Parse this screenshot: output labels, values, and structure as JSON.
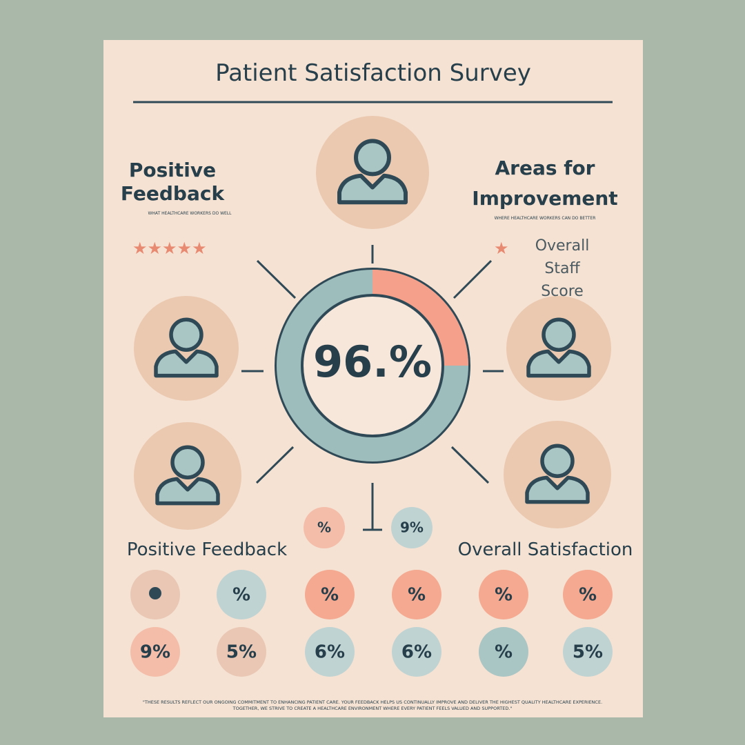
{
  "header": {
    "title": "Patient Satisfaction Survey"
  },
  "positive_feedback": {
    "heading": "Positive Feedback",
    "subheading": "WHAT HEALTHCARE WORKERS DO WELL"
  },
  "improvement": {
    "heading": "Areas for Improvement",
    "subheading": "WHERE HEALTHCARE WORKERS CAN DO BETTER"
  },
  "staff_score": {
    "label": "Overall Staff Score"
  },
  "center": {
    "value_label": "96.%"
  },
  "small_badges": [
    "%",
    "9%"
  ],
  "section_labels": [
    "Positive Feedback",
    "Overall Satisfaction"
  ],
  "badge_rows": [
    [
      "%",
      "%",
      "%",
      "%",
      "%"
    ],
    [
      "9%",
      "5%",
      "6%",
      "6%",
      "%",
      "5%"
    ]
  ],
  "footer": "\"THESE RESULTS REFLECT OUR ONGOING COMMITMENT TO ENHANCING PATIENT CARE. YOUR FEEDBACK HELPS US CONTINUALLY IMPROVE AND DELIVER THE HIGHEST QUALITY HEALTHCARE EXPERIENCE. TOGETHER, WE STRIVE TO CREATE A HEALTHCARE ENVIRONMENT WHERE EVERY PATIENT FEELS VALUED AND SUPPORTED.\""
}
